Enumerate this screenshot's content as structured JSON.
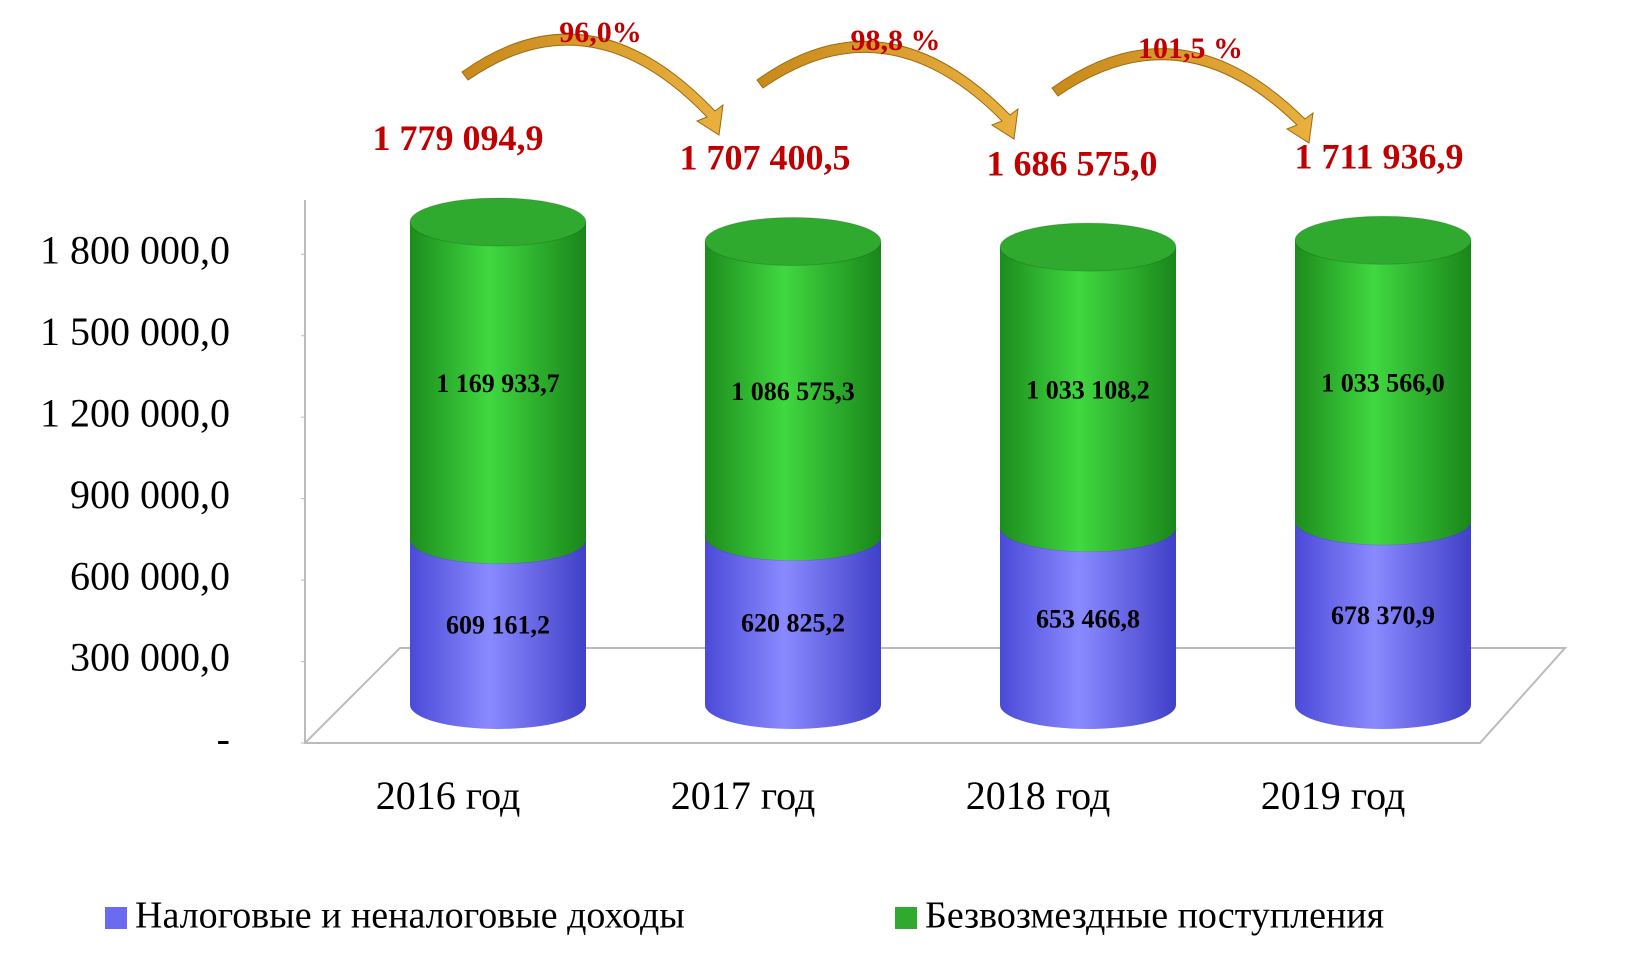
{
  "chart_data": {
    "type": "bar",
    "stacked": true,
    "categories": [
      "2016 год",
      "2017 год",
      "2018 год",
      "2019 год"
    ],
    "series": [
      {
        "name": "Налоговые и неналоговые доходы",
        "color": "#6b6bf2",
        "values": [
          609161.2,
          620825.2,
          653466.8,
          678370.9
        ],
        "value_labels": [
          "609 161,2",
          "620 825,2",
          "653 466,8",
          "678 370,9"
        ]
      },
      {
        "name": "Безвозмездные поступления",
        "color": "#2faa2f",
        "values": [
          1169933.7,
          1086575.3,
          1033108.2,
          1033566.0
        ],
        "value_labels": [
          "1 169 933,7",
          "1 086 575,3",
          "1 033 108,2",
          "1 033 566,0"
        ]
      }
    ],
    "totals": {
      "values": [
        1779094.9,
        1707400.5,
        1686575.0,
        1711936.9
      ],
      "value_labels": [
        "1 779 094,9",
        "1 707 400,5",
        "1 686 575,0",
        "1 711 936,9"
      ]
    },
    "growth": {
      "values": [
        96.0,
        98.8,
        101.5
      ],
      "value_labels": [
        "96,0%",
        "98,8 %",
        "101,5 %"
      ]
    },
    "ylim": [
      0,
      2000000
    ],
    "yticks": [
      {
        "value": 0,
        "label": "-"
      },
      {
        "value": 300000,
        "label": "300 000,0"
      },
      {
        "value": 600000,
        "label": "600 000,0"
      },
      {
        "value": 900000,
        "label": "900 000,0"
      },
      {
        "value": 1200000,
        "label": "1 200 000,0"
      },
      {
        "value": 1500000,
        "label": "1 500 000,0"
      },
      {
        "value": 1800000,
        "label": "1 800 000,0"
      }
    ]
  }
}
